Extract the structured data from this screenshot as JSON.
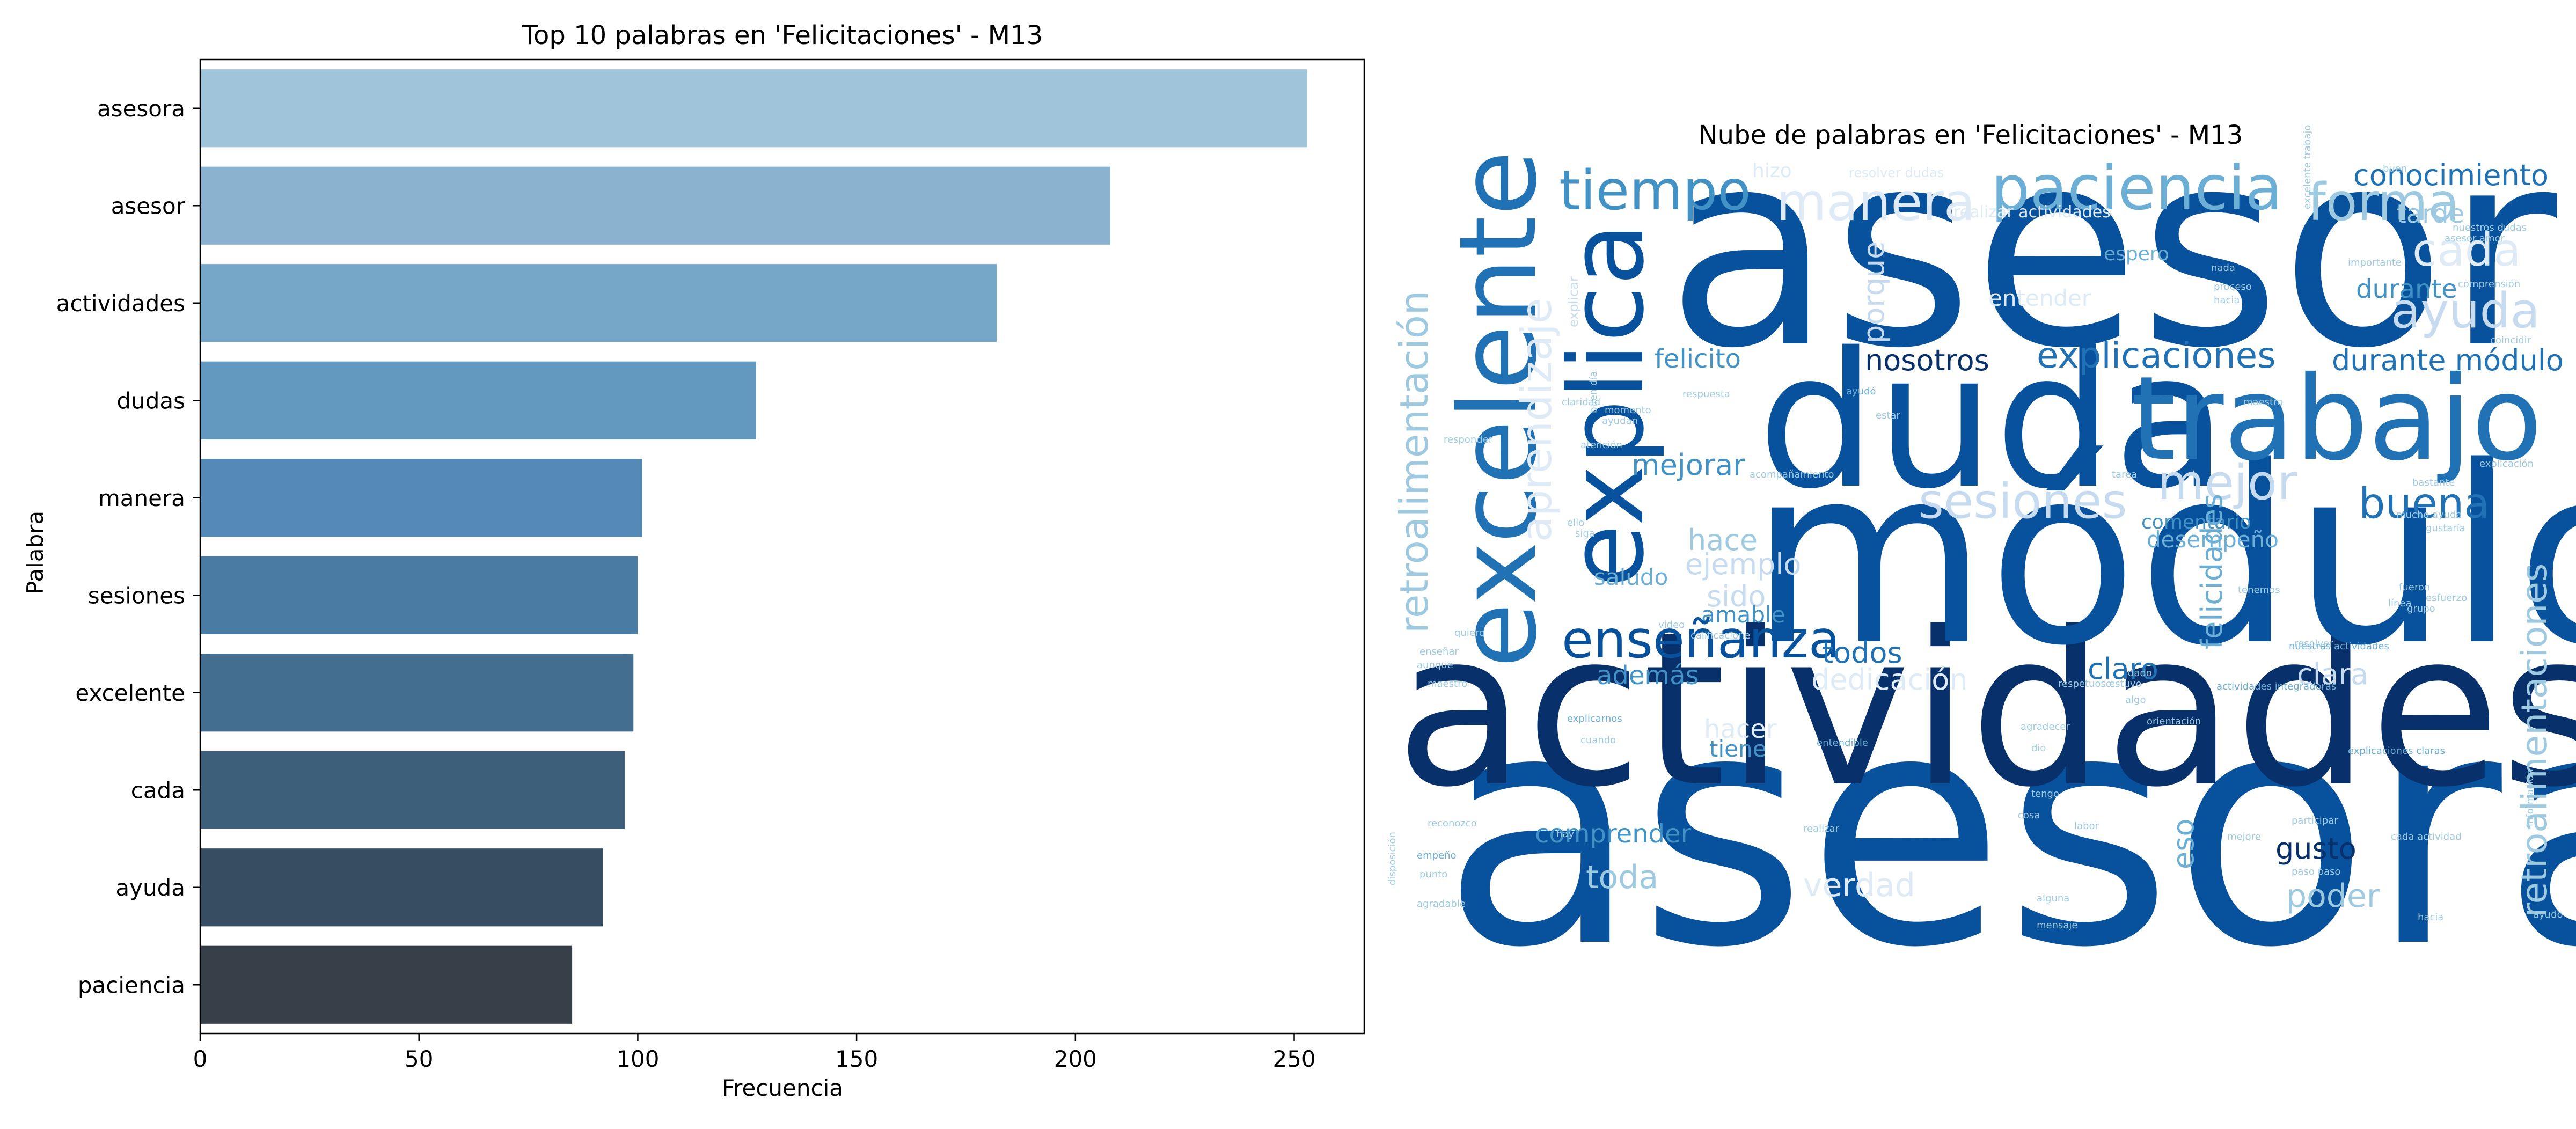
{
  "chart_data": [
    {
      "type": "bar",
      "orientation": "horizontal",
      "title": "Top 10 palabras en 'Felicitaciones' - M13",
      "xlabel": "Frecuencia",
      "ylabel": "Palabra",
      "xlim": [
        0,
        266
      ],
      "xticks": [
        0,
        50,
        100,
        150,
        200,
        250
      ],
      "grid": false,
      "categories": [
        "asesora",
        "asesor",
        "actividades",
        "dudas",
        "manera",
        "sesiones",
        "excelente",
        "cada",
        "ayuda",
        "paciencia"
      ],
      "values": [
        253,
        208,
        182,
        127,
        101,
        100,
        99,
        97,
        92,
        85
      ],
      "colors": [
        "#a0c4d9",
        "#8bb3cf",
        "#76a6c8",
        "#6398bf",
        "#548ab5",
        "#4a7ca3",
        "#436e8f",
        "#3d5f79",
        "#374e62",
        "#373f48"
      ]
    },
    {
      "type": "wordcloud",
      "title": "Nube de palabras en 'Felicitaciones' - M13",
      "colormap": "Blues",
      "words": [
        {
          "text": "asesora",
          "size": 1.0,
          "color": "#08519c",
          "vertical": false
        },
        {
          "text": "asesor",
          "size": 0.84,
          "color": "#08519c",
          "vertical": false
        },
        {
          "text": "actividades",
          "size": 0.66,
          "color": "#08306b",
          "vertical": false
        },
        {
          "text": "módulo",
          "size": 0.76,
          "color": "#08519c",
          "vertical": false
        },
        {
          "text": "duda",
          "size": 0.58,
          "color": "#08519c",
          "vertical": false
        },
        {
          "text": "trabajo",
          "size": 0.36,
          "color": "#2171b5",
          "vertical": false
        },
        {
          "text": "excelente",
          "size": 0.33,
          "color": "#2171b5",
          "vertical": true
        },
        {
          "text": "explica",
          "size": 0.32,
          "color": "#08519c",
          "vertical": true
        },
        {
          "text": "retroalimentación",
          "size": 0.12,
          "color": "#9ecae1",
          "vertical": true
        },
        {
          "text": "aprendizaje",
          "size": 0.13,
          "color": "#deebf7",
          "vertical": true
        },
        {
          "text": "retroalimentaciones",
          "size": 0.11,
          "color": "#9ecae1",
          "vertical": true
        },
        {
          "text": "tiempo",
          "size": 0.17,
          "color": "#4292c6",
          "vertical": false
        },
        {
          "text": "paciencia",
          "size": 0.19,
          "color": "#6baed6",
          "vertical": false
        },
        {
          "text": "manera",
          "size": 0.16,
          "color": "#deebf7",
          "vertical": false
        },
        {
          "text": "forma",
          "size": 0.16,
          "color": "#9ecae1",
          "vertical": false
        },
        {
          "text": "conocimiento",
          "size": 0.09,
          "color": "#2171b5",
          "vertical": false
        },
        {
          "text": "tarde",
          "size": 0.08,
          "color": "#9ecae1",
          "vertical": false
        },
        {
          "text": "cada",
          "size": 0.14,
          "color": "#deebf7",
          "vertical": false
        },
        {
          "text": "ayuda",
          "size": 0.15,
          "color": "#c6dbef",
          "vertical": false
        },
        {
          "text": "durante",
          "size": 0.08,
          "color": "#4292c6",
          "vertical": false
        },
        {
          "text": "espero",
          "size": 0.06,
          "color": "#6baed6",
          "vertical": false
        },
        {
          "text": "explicaciones",
          "size": 0.11,
          "color": "#2171b5",
          "vertical": false
        },
        {
          "text": "durante módulo",
          "size": 0.09,
          "color": "#2171b5",
          "vertical": false
        },
        {
          "text": "nosotros",
          "size": 0.09,
          "color": "#08306b",
          "vertical": false
        },
        {
          "text": "felicito",
          "size": 0.08,
          "color": "#4292c6",
          "vertical": false
        },
        {
          "text": "porque",
          "size": 0.09,
          "color": "#c6dbef",
          "vertical": true
        },
        {
          "text": "sesiones",
          "size": 0.15,
          "color": "#c6dbef",
          "vertical": false
        },
        {
          "text": "mejor",
          "size": 0.15,
          "color": "#c6dbef",
          "vertical": false
        },
        {
          "text": "buena",
          "size": 0.13,
          "color": "#2171b5",
          "vertical": false
        },
        {
          "text": "mejorar",
          "size": 0.09,
          "color": "#4292c6",
          "vertical": false
        },
        {
          "text": "desempeño",
          "size": 0.07,
          "color": "#6baed6",
          "vertical": false
        },
        {
          "text": "comentario",
          "size": 0.06,
          "color": "#4292c6",
          "vertical": false
        },
        {
          "text": "hace",
          "size": 0.09,
          "color": "#9ecae1",
          "vertical": false
        },
        {
          "text": "ejemplo",
          "size": 0.09,
          "color": "#c6dbef",
          "vertical": false
        },
        {
          "text": "felicidades",
          "size": 0.09,
          "color": "#6baed6",
          "vertical": true
        },
        {
          "text": "saludo",
          "size": 0.07,
          "color": "#6baed6",
          "vertical": false
        },
        {
          "text": "sido",
          "size": 0.09,
          "color": "#c6dbef",
          "vertical": false
        },
        {
          "text": "amable",
          "size": 0.07,
          "color": "#4292c6",
          "vertical": false
        },
        {
          "text": "enseñanza",
          "size": 0.16,
          "color": "#08519c",
          "vertical": false
        },
        {
          "text": "todos",
          "size": 0.09,
          "color": "#2171b5",
          "vertical": false
        },
        {
          "text": "claro",
          "size": 0.09,
          "color": "#2171b5",
          "vertical": false
        },
        {
          "text": "además",
          "size": 0.08,
          "color": "#4292c6",
          "vertical": false
        },
        {
          "text": "dedicación",
          "size": 0.09,
          "color": "#deebf7",
          "vertical": false
        },
        {
          "text": "clara",
          "size": 0.09,
          "color": "#c6dbef",
          "vertical": false
        },
        {
          "text": "hacer",
          "size": 0.08,
          "color": "#deebf7",
          "vertical": false
        },
        {
          "text": "tiene",
          "size": 0.07,
          "color": "#4292c6",
          "vertical": false
        },
        {
          "text": "comprender",
          "size": 0.08,
          "color": "#4292c6",
          "vertical": false
        },
        {
          "text": "eso",
          "size": 0.09,
          "color": "#6baed6",
          "vertical": true
        },
        {
          "text": "gusto",
          "size": 0.09,
          "color": "#08306b",
          "vertical": false
        },
        {
          "text": "toda",
          "size": 0.1,
          "color": "#9ecae1",
          "vertical": false
        },
        {
          "text": "verdad",
          "size": 0.1,
          "color": "#deebf7",
          "vertical": false
        },
        {
          "text": "poder",
          "size": 0.1,
          "color": "#9ecae1",
          "vertical": false
        },
        {
          "text": "entender",
          "size": 0.07,
          "color": "#deebf7",
          "vertical": false
        },
        {
          "text": "hizo",
          "size": 0.06,
          "color": "#deebf7",
          "vertical": false
        },
        {
          "text": "resolver dudas",
          "size": 0.04,
          "color": "#deebf7",
          "vertical": false
        },
        {
          "text": "realizar actividades",
          "size": 0.05,
          "color": "#deebf7",
          "vertical": false
        },
        {
          "text": "explicar",
          "size": 0.04,
          "color": "#c6dbef",
          "vertical": true
        },
        {
          "text": "importante",
          "size": 0.03,
          "color": "#9ecae1",
          "vertical": false
        },
        {
          "text": "proceso",
          "size": 0.03,
          "color": "#9ecae1",
          "vertical": false
        },
        {
          "text": "hacia",
          "size": 0.03,
          "color": "#9ecae1",
          "vertical": false
        },
        {
          "text": "nada",
          "size": 0.03,
          "color": "#9ecae1",
          "vertical": false
        },
        {
          "text": "excelente trabajo",
          "size": 0.03,
          "color": "#9ecae1",
          "vertical": true
        },
        {
          "text": "comprensión",
          "size": 0.03,
          "color": "#9ecae1",
          "vertical": false
        },
        {
          "text": "ayudó",
          "size": 0.03,
          "color": "#6baed6",
          "vertical": false
        },
        {
          "text": "claridad",
          "size": 0.03,
          "color": "#9ecae1",
          "vertical": false
        },
        {
          "text": "momento",
          "size": 0.03,
          "color": "#9ecae1",
          "vertical": false
        },
        {
          "text": "maestra",
          "size": 0.03,
          "color": "#9ecae1",
          "vertical": false
        },
        {
          "text": "atención",
          "size": 0.03,
          "color": "#9ecae1",
          "vertical": false
        },
        {
          "text": "responder",
          "size": 0.03,
          "color": "#9ecae1",
          "vertical": false
        },
        {
          "text": "tarea",
          "size": 0.03,
          "color": "#9ecae1",
          "vertical": false
        },
        {
          "text": "bastante",
          "size": 0.03,
          "color": "#9ecae1",
          "vertical": false
        },
        {
          "text": "explicación",
          "size": 0.03,
          "color": "#9ecae1",
          "vertical": false
        },
        {
          "text": "gustaría",
          "size": 0.03,
          "color": "#9ecae1",
          "vertical": false
        },
        {
          "text": "tenemos",
          "size": 0.03,
          "color": "#9ecae1",
          "vertical": false
        },
        {
          "text": "fueron",
          "size": 0.03,
          "color": "#9ecae1",
          "vertical": false
        },
        {
          "text": "esfuerzo",
          "size": 0.03,
          "color": "#9ecae1",
          "vertical": false
        },
        {
          "text": "grupo",
          "size": 0.03,
          "color": "#9ecae1",
          "vertical": false
        },
        {
          "text": "línea",
          "size": 0.03,
          "color": "#9ecae1",
          "vertical": false
        },
        {
          "text": "nuestras actividades",
          "size": 0.03,
          "color": "#6baed6",
          "vertical": false
        },
        {
          "text": "resolver",
          "size": 0.03,
          "color": "#9ecae1",
          "vertical": false
        },
        {
          "text": "calificacione",
          "size": 0.03,
          "color": "#9ecae1",
          "vertical": false
        },
        {
          "text": "video",
          "size": 0.03,
          "color": "#9ecae1",
          "vertical": false
        },
        {
          "text": "quiero",
          "size": 0.03,
          "color": "#9ecae1",
          "vertical": false
        },
        {
          "text": "aunque",
          "size": 0.03,
          "color": "#9ecae1",
          "vertical": false
        },
        {
          "text": "enseñar",
          "size": 0.03,
          "color": "#9ecae1",
          "vertical": false
        },
        {
          "text": "maestro",
          "size": 0.03,
          "color": "#9ecae1",
          "vertical": false
        },
        {
          "text": "explicarnos",
          "size": 0.03,
          "color": "#6baed6",
          "vertical": false
        },
        {
          "text": "cuando",
          "size": 0.03,
          "color": "#9ecae1",
          "vertical": false
        },
        {
          "text": "agradecer",
          "size": 0.03,
          "color": "#9ecae1",
          "vertical": false
        },
        {
          "text": "orientación",
          "size": 0.03,
          "color": "#9ecae1",
          "vertical": false
        },
        {
          "text": "entendible",
          "size": 0.03,
          "color": "#6baed6",
          "vertical": false
        },
        {
          "text": "actividades integradoras",
          "size": 0.03,
          "color": "#6baed6",
          "vertical": false
        },
        {
          "text": "explicaciones claras",
          "size": 0.03,
          "color": "#6baed6",
          "vertical": false
        },
        {
          "text": "algo",
          "size": 0.03,
          "color": "#9ecae1",
          "vertical": false
        },
        {
          "text": "dado",
          "size": 0.03,
          "color": "#9ecae1",
          "vertical": false
        },
        {
          "text": "respetuoso",
          "size": 0.03,
          "color": "#9ecae1",
          "vertical": false
        },
        {
          "text": "estuvo",
          "size": 0.03,
          "color": "#9ecae1",
          "vertical": false
        },
        {
          "text": "dio",
          "size": 0.03,
          "color": "#9ecae1",
          "vertical": false
        },
        {
          "text": "tengo",
          "size": 0.03,
          "color": "#9ecae1",
          "vertical": false
        },
        {
          "text": "cosa",
          "size": 0.03,
          "color": "#9ecae1",
          "vertical": false
        },
        {
          "text": "labor",
          "size": 0.03,
          "color": "#9ecae1",
          "vertical": false
        },
        {
          "text": "hay",
          "size": 0.03,
          "color": "#9ecae1",
          "vertical": false
        },
        {
          "text": "realizar",
          "size": 0.03,
          "color": "#9ecae1",
          "vertical": false
        },
        {
          "text": "participar",
          "size": 0.03,
          "color": "#9ecae1",
          "vertical": false
        },
        {
          "text": "cada actividad",
          "size": 0.03,
          "color": "#9ecae1",
          "vertical": false
        },
        {
          "text": "mejore",
          "size": 0.03,
          "color": "#9ecae1",
          "vertical": false
        },
        {
          "text": "paso paso",
          "size": 0.03,
          "color": "#9ecae1",
          "vertical": false
        },
        {
          "text": "reconozco",
          "size": 0.03,
          "color": "#9ecae1",
          "vertical": false
        },
        {
          "text": "empeño",
          "size": 0.03,
          "color": "#6baed6",
          "vertical": false
        },
        {
          "text": "punto",
          "size": 0.03,
          "color": "#9ecae1",
          "vertical": false
        },
        {
          "text": "agradable",
          "size": 0.03,
          "color": "#9ecae1",
          "vertical": false
        },
        {
          "text": "disposición",
          "size": 0.03,
          "color": "#9ecae1",
          "vertical": true
        },
        {
          "text": "alguna",
          "size": 0.03,
          "color": "#9ecae1",
          "vertical": false
        },
        {
          "text": "hacia",
          "size": 0.03,
          "color": "#9ecae1",
          "vertical": false
        },
        {
          "text": "mensaje",
          "size": 0.03,
          "color": "#9ecae1",
          "vertical": false
        },
        {
          "text": "información",
          "size": 0.03,
          "color": "#9ecae1",
          "vertical": true
        },
        {
          "text": "ayudo",
          "size": 0.03,
          "color": "#9ecae1",
          "vertical": false
        },
        {
          "text": "buen día",
          "size": 0.03,
          "color": "#9ecae1",
          "vertical": true
        },
        {
          "text": "ayudan",
          "size": 0.03,
          "color": "#9ecae1",
          "vertical": false
        },
        {
          "text": "respuesta",
          "size": 0.03,
          "color": "#9ecae1",
          "vertical": false
        },
        {
          "text": "acompañamiento",
          "size": 0.03,
          "color": "#9ecae1",
          "vertical": false
        },
        {
          "text": "siga",
          "size": 0.03,
          "color": "#9ecae1",
          "vertical": false
        },
        {
          "text": "ello",
          "size": 0.03,
          "color": "#9ecae1",
          "vertical": false
        },
        {
          "text": "coincidir",
          "size": 0.03,
          "color": "#9ecae1",
          "vertical": false
        },
        {
          "text": "asesor amor",
          "size": 0.03,
          "color": "#9ecae1",
          "vertical": false
        },
        {
          "text": "nuestros dudas",
          "size": 0.03,
          "color": "#9ecae1",
          "vertical": false
        },
        {
          "text": "buen",
          "size": 0.03,
          "color": "#9ecae1",
          "vertical": false
        },
        {
          "text": "estar",
          "size": 0.03,
          "color": "#9ecae1",
          "vertical": false
        },
        {
          "text": "mucho ayuda",
          "size": 0.03,
          "color": "#9ecae1",
          "vertical": false
        }
      ]
    }
  ]
}
